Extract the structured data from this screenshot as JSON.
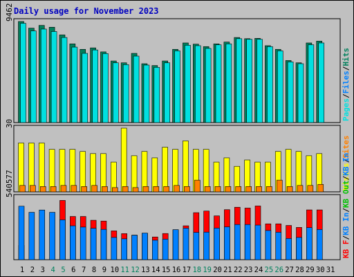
{
  "title": "Daily usage for November 2023",
  "chart_data": [
    {
      "type": "bar",
      "panel": "top",
      "ymax_label": "9462",
      "ylim": [
        0,
        9462
      ],
      "categories": [
        "1",
        "2",
        "3",
        "4",
        "5",
        "6",
        "7",
        "8",
        "9",
        "10",
        "11",
        "12",
        "13",
        "14",
        "15",
        "16",
        "17",
        "18",
        "19",
        "20",
        "21",
        "22",
        "23",
        "24",
        "25",
        "26",
        "27",
        "28",
        "29",
        "30",
        "31"
      ],
      "series": [
        {
          "name": "Hits",
          "color": "#00805c",
          "values": [
            9462,
            8840,
            9096,
            8925,
            8207,
            7367,
            6854,
            6991,
            6616,
            5765,
            5594,
            6479,
            5509,
            5338,
            5765,
            6855,
            7453,
            7340,
            7111,
            7366,
            7537,
            7964,
            7852,
            7880,
            7197,
            6855,
            5809,
            5594,
            7453,
            7623,
            null
          ]
        },
        {
          "name": "Files",
          "color": "#0080ff",
          "values": [
            null,
            null,
            null,
            null,
            null,
            null,
            null,
            null,
            null,
            null,
            null,
            null,
            null,
            null,
            null,
            null,
            null,
            null,
            null,
            null,
            null,
            null,
            null,
            null,
            null,
            null,
            null,
            null,
            null,
            null,
            null
          ]
        },
        {
          "name": "Pages",
          "color": "#00e0e0",
          "values": [
            9291,
            8582,
            8753,
            8522,
            7964,
            7062,
            6479,
            6796,
            6456,
            5594,
            5424,
            6222,
            5381,
            5168,
            5594,
            6712,
            7237,
            7197,
            6941,
            7280,
            7367,
            7852,
            7794,
            7794,
            7111,
            6712,
            5676,
            5509,
            7284,
            7453,
            null
          ]
        }
      ],
      "legend": [
        "Pages",
        "/",
        "Files",
        "/",
        "Hits"
      ]
    },
    {
      "type": "bar",
      "panel": "middle",
      "ymax_label": "30",
      "ylim": [
        0,
        30
      ],
      "categories": [
        "1",
        "2",
        "3",
        "4",
        "5",
        "6",
        "7",
        "8",
        "9",
        "10",
        "11",
        "12",
        "13",
        "14",
        "15",
        "16",
        "17",
        "18",
        "19",
        "20",
        "21",
        "22",
        "23",
        "24",
        "25",
        "26",
        "27",
        "28",
        "29",
        "30",
        "31"
      ],
      "series": [
        {
          "name": "Visits",
          "color": "#ffff00",
          "values": [
            23,
            23,
            23,
            20,
            20,
            20,
            19,
            18,
            18,
            14,
            30,
            17,
            19,
            16,
            21,
            20,
            24,
            20,
            20,
            14,
            16,
            12,
            15,
            14,
            14,
            19,
            20,
            19,
            17,
            18,
            null
          ]
        },
        {
          "name": "Sites",
          "color": "#ff8000",
          "values": [
            3,
            3,
            2.5,
            2.5,
            3,
            3,
            2.5,
            3,
            2.5,
            2,
            2.5,
            2,
            2.5,
            2.5,
            2.5,
            3,
            2.5,
            5.5,
            2.5,
            2.5,
            2.5,
            2.5,
            2.5,
            2.5,
            2.5,
            5.5,
            2.5,
            3,
            3,
            3.5,
            null
          ]
        }
      ],
      "legend": [
        "Visits",
        "/",
        "Sites"
      ]
    },
    {
      "type": "bar",
      "panel": "bottom",
      "ymax_label": "540577",
      "ylim": [
        0,
        540577
      ],
      "categories": [
        "1",
        "2",
        "3",
        "4",
        "5",
        "6",
        "7",
        "8",
        "9",
        "10",
        "11",
        "12",
        "13",
        "14",
        "15",
        "16",
        "17",
        "18",
        "19",
        "20",
        "21",
        "22",
        "23",
        "24",
        "25",
        "26",
        "27",
        "28",
        "29",
        "30",
        "31"
      ],
      "series": [
        {
          "name": "KB F",
          "color": "#ff0000",
          "values": [
            124000,
            null,
            null,
            null,
            514000,
            375000,
            375000,
            342000,
            335000,
            250000,
            226000,
            213000,
            226000,
            197000,
            227000,
            260000,
            294000,
            408000,
            422000,
            380000,
            434000,
            455000,
            448000,
            466000,
            311000,
            311000,
            297000,
            280000,
            432000,
            432000,
            null
          ]
        },
        {
          "name": "KB In",
          "color": "#00c000",
          "values": [
            null,
            null,
            null,
            null,
            null,
            null,
            null,
            null,
            null,
            null,
            null,
            null,
            null,
            null,
            null,
            null,
            null,
            null,
            null,
            null,
            null,
            null,
            null,
            null,
            null,
            null,
            null,
            null,
            null,
            null,
            null
          ]
        },
        {
          "name": "KB Out",
          "color": "#00c000",
          "values": [
            null,
            null,
            null,
            null,
            null,
            null,
            null,
            null,
            null,
            null,
            null,
            null,
            null,
            null,
            null,
            null,
            null,
            null,
            null,
            null,
            null,
            null,
            null,
            null,
            null,
            null,
            null,
            null,
            null,
            null,
            null
          ]
        },
        {
          "name": "KB In",
          "color": "#0080ff",
          "values": [
            464000,
            411000,
            431000,
            411000,
            346000,
            294000,
            283000,
            272000,
            263000,
            193000,
            181000,
            212000,
            231000,
            169000,
            178000,
            260000,
            273000,
            237000,
            239000,
            274000,
            285000,
            305000,
            305000,
            300000,
            253000,
            238000,
            184000,
            193000,
            278000,
            262000,
            null
          ]
        }
      ],
      "legend": [
        "KB F",
        "/",
        "KB In",
        "/",
        "KB Out",
        "/",
        "KB In"
      ]
    }
  ],
  "x_label_colors": {
    "weekday": "#000000",
    "weekend": "#00805c"
  },
  "weekend_days": [
    "4",
    "5",
    "11",
    "12",
    "18",
    "19",
    "25",
    "26"
  ]
}
